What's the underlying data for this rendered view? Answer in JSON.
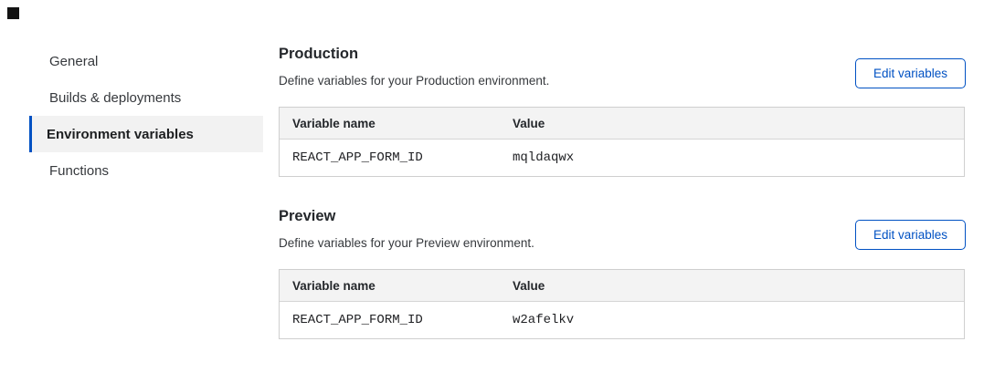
{
  "theme": {
    "accent_blue": "#0051c3",
    "selected_item_bg": "#f2f2f2",
    "table_header_bg": "#f3f3f3",
    "table_border": "#cfcfcf",
    "text_primary": "#24272b",
    "text_secondary": "#36393d"
  },
  "sidebar": {
    "items": [
      {
        "label": "General",
        "selected": false
      },
      {
        "label": "Builds & deployments",
        "selected": false
      },
      {
        "label": "Environment variables",
        "selected": true
      },
      {
        "label": "Functions",
        "selected": false
      }
    ]
  },
  "sections": [
    {
      "title": "Production",
      "description": "Define variables for your Production environment.",
      "button_label": "Edit variables",
      "table": {
        "columns": [
          "Variable name",
          "Value"
        ],
        "rows": [
          {
            "name": "REACT_APP_FORM_ID",
            "value": "mqldaqwx"
          }
        ]
      }
    },
    {
      "title": "Preview",
      "description": "Define variables for your Preview environment.",
      "button_label": "Edit variables",
      "table": {
        "columns": [
          "Variable name",
          "Value"
        ],
        "rows": [
          {
            "name": "REACT_APP_FORM_ID",
            "value": "w2afelkv"
          }
        ]
      }
    }
  ]
}
